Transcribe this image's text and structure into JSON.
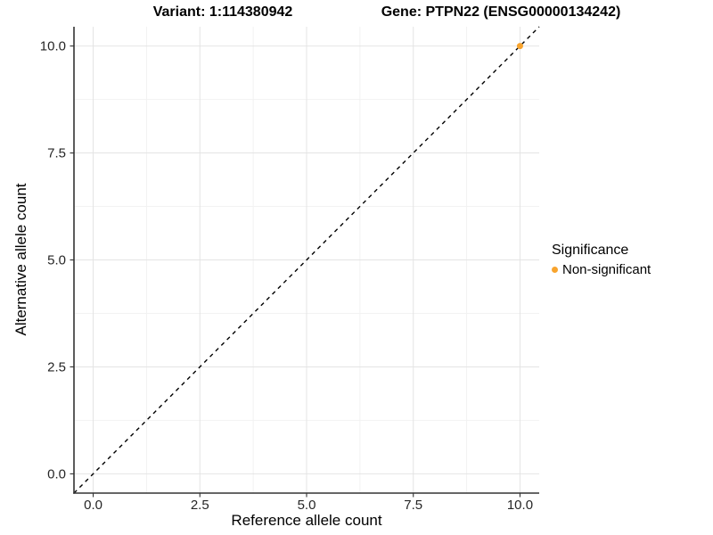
{
  "chart_data": {
    "type": "scatter",
    "titles": {
      "left": "Variant: 1:114380942",
      "right": "Gene: PTPN22 (ENSG00000134242)"
    },
    "xlabel": "Reference allele count",
    "ylabel": "Alternative allele count",
    "xlim": [
      -0.45,
      10.45
    ],
    "ylim": [
      -0.45,
      10.45
    ],
    "x_ticks": {
      "values": [
        0,
        2.5,
        5,
        7.5,
        10
      ],
      "labels": [
        "0.0",
        "2.5",
        "5.0",
        "7.5",
        "10.0"
      ]
    },
    "y_ticks": {
      "values": [
        0,
        2.5,
        5,
        7.5,
        10
      ],
      "labels": [
        "10.0",
        "7.5",
        "5.0",
        "2.5",
        "0.0"
      ],
      "labels_by_value": {
        "0": "0.0",
        "2.5": "2.5",
        "5": "5.0",
        "7.5": "7.5",
        "10": "10.0"
      }
    },
    "minor_tick_values": [
      1.25,
      3.75,
      6.25,
      8.75
    ],
    "grid": true,
    "reference_line": {
      "style": "dashed",
      "color": "#000000",
      "equation": "y = x"
    },
    "series": [
      {
        "name": "Non-significant",
        "color": "#F8A42E",
        "points": [
          [
            10,
            10
          ]
        ]
      }
    ],
    "legend": {
      "title": "Significance",
      "position": "right",
      "entries": [
        {
          "label": "Non-significant",
          "color": "#F8A42E"
        }
      ]
    }
  },
  "colors": {
    "background": "#FFFFFF",
    "axis_line": "#333333",
    "grid_major": "#E4E4E4",
    "grid_minor": "#F2F2F2",
    "tick_label": "#262626",
    "title_text": "#000000"
  }
}
